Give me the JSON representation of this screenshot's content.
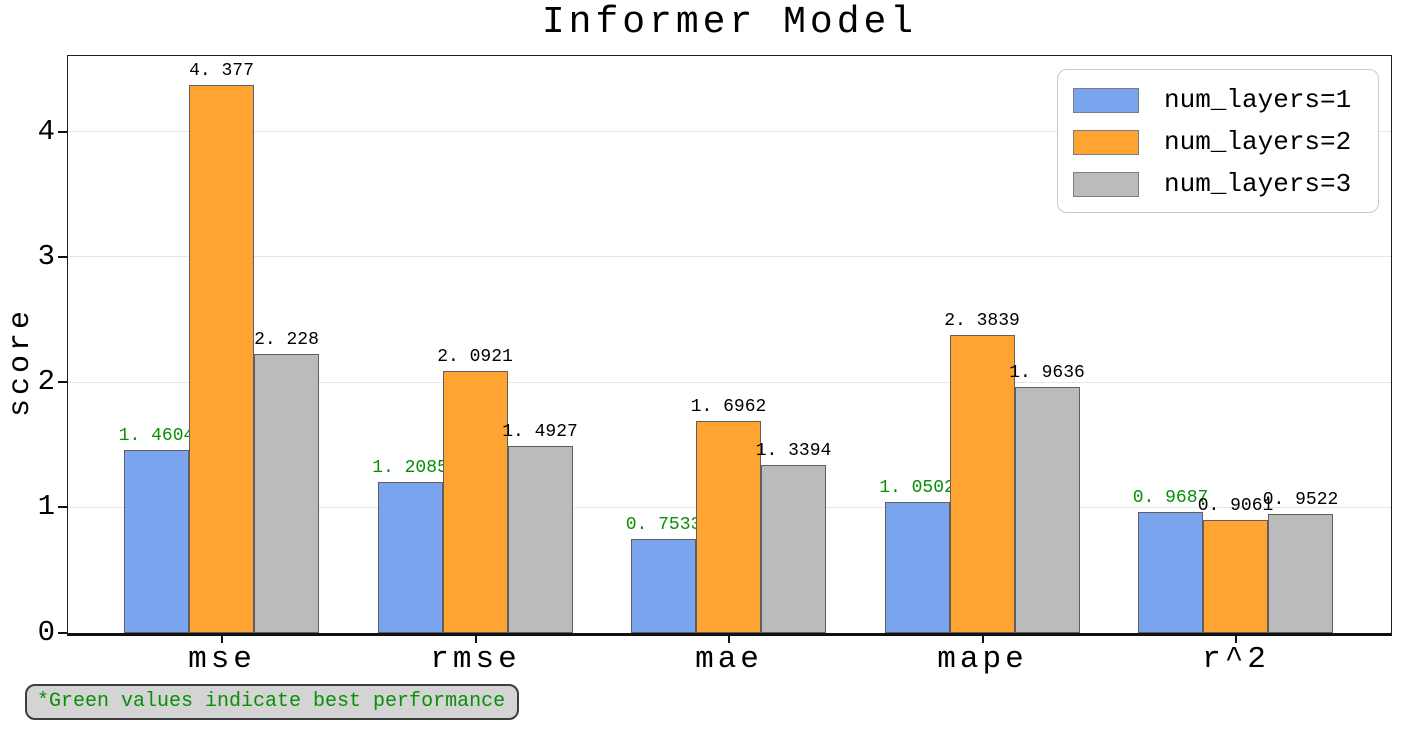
{
  "title": "Informer Model",
  "y_axis": {
    "label": "score",
    "tick_labels": [
      "0",
      "1",
      "2",
      "3",
      "4"
    ]
  },
  "legend": {
    "items": [
      {
        "label": "num_layers=1",
        "color": "#7aa5ee"
      },
      {
        "label": "num_layers=2",
        "color": "#ffa333"
      },
      {
        "label": "num_layers=3",
        "color": "#bbbbbb"
      }
    ]
  },
  "footnote": "*Green values indicate best performance",
  "colors": {
    "best_label_green": "#078f07",
    "default_label": "#000000",
    "bar_edge": "#5f5f5f",
    "grid": "#e7e7e7"
  },
  "chart_data": {
    "type": "bar",
    "title": "Informer Model",
    "xlabel": "",
    "ylabel": "score",
    "categories": [
      "mse",
      "rmse",
      "mae",
      "mape",
      "r^2"
    ],
    "series": [
      {
        "name": "num_layers=1",
        "color": "#7aa5ee",
        "best": true,
        "values": [
          1.4604,
          1.2085,
          0.7533,
          1.0502,
          0.9687
        ],
        "labels": [
          "1. 4604",
          "1. 2085",
          "0. 7533",
          "1. 0502",
          "0. 9687"
        ]
      },
      {
        "name": "num_layers=2",
        "color": "#ffa333",
        "best": false,
        "values": [
          4.377,
          2.0921,
          1.6962,
          2.3839,
          0.9061
        ],
        "labels": [
          "4. 377",
          "2. 0921",
          "1. 6962",
          "2. 3839",
          "0. 9061"
        ]
      },
      {
        "name": "num_layers=3",
        "color": "#bbbbbb",
        "best": false,
        "values": [
          2.228,
          1.4927,
          1.3394,
          1.9636,
          0.9522
        ],
        "labels": [
          "2. 228",
          "1. 4927",
          "1. 3394",
          "1. 9636",
          "0. 9522"
        ]
      }
    ],
    "yticks": [
      0,
      1,
      2,
      3,
      4
    ],
    "ylim": [
      0,
      4.6
    ],
    "grid": true,
    "legend_position": "upper right",
    "annotation": "*Green values indicate best performance",
    "annotation_color": "#078f07"
  }
}
